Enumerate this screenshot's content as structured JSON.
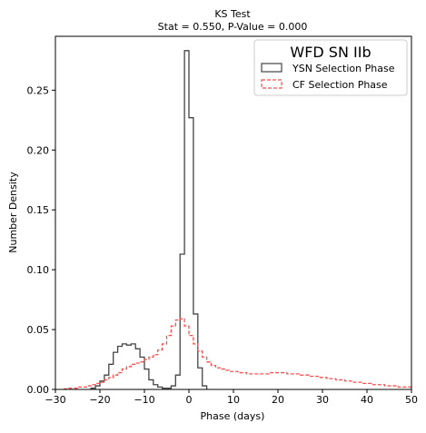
{
  "chart_data": {
    "type": "step-histogram",
    "title": "KS Test",
    "subtitle": "Stat = 0.550, P-Value = 0.000",
    "xlabel": "Phase (days)",
    "ylabel": "Number Density",
    "xlim": [
      -30,
      50
    ],
    "ylim": [
      0,
      0.295
    ],
    "xticks": [
      -30,
      -20,
      -10,
      0,
      10,
      20,
      30,
      40,
      50
    ],
    "yticks": [
      0.0,
      0.05,
      0.1,
      0.15,
      0.2,
      0.25
    ],
    "xtick_labels": [
      "−30",
      "−20",
      "−10",
      "0",
      "10",
      "20",
      "30",
      "40",
      "50"
    ],
    "ytick_labels": [
      "0.00",
      "0.05",
      "0.10",
      "0.15",
      "0.20",
      "0.25"
    ],
    "grid": false,
    "legend": {
      "title": "WFD SN IIb",
      "placement": "top-right"
    },
    "bin_width": 1,
    "series": [
      {
        "name": "YSN Selection Phase",
        "color": "#444444",
        "linestyle": "solid",
        "bin_start": -22,
        "values": [
          0.001,
          0.003,
          0.007,
          0.012,
          0.021,
          0.031,
          0.036,
          0.038,
          0.037,
          0.038,
          0.034,
          0.027,
          0.017,
          0.008,
          0.004,
          0.002,
          0.001,
          0.001,
          0.003,
          0.012,
          0.113,
          0.283,
          0.227,
          0.063,
          0.018,
          0.003
        ]
      },
      {
        "name": "CF Selection Phase",
        "color": "#ff4d4d",
        "linestyle": "dashed",
        "bin_start": -28,
        "values": [
          0.0005,
          0.001,
          0.001,
          0.002,
          0.002,
          0.003,
          0.004,
          0.005,
          0.006,
          0.008,
          0.01,
          0.012,
          0.014,
          0.017,
          0.019,
          0.021,
          0.022,
          0.023,
          0.025,
          0.027,
          0.029,
          0.033,
          0.038,
          0.045,
          0.053,
          0.058,
          0.059,
          0.053,
          0.045,
          0.038,
          0.032,
          0.027,
          0.023,
          0.02,
          0.018,
          0.017,
          0.016,
          0.015,
          0.015,
          0.014,
          0.014,
          0.013,
          0.013,
          0.013,
          0.013,
          0.013,
          0.014,
          0.014,
          0.014,
          0.014,
          0.013,
          0.013,
          0.013,
          0.012,
          0.012,
          0.011,
          0.011,
          0.01,
          0.01,
          0.009,
          0.009,
          0.008,
          0.008,
          0.007,
          0.007,
          0.006,
          0.006,
          0.005,
          0.005,
          0.004,
          0.004,
          0.004,
          0.003,
          0.003,
          0.003,
          0.002,
          0.002,
          0.002
        ]
      }
    ]
  }
}
